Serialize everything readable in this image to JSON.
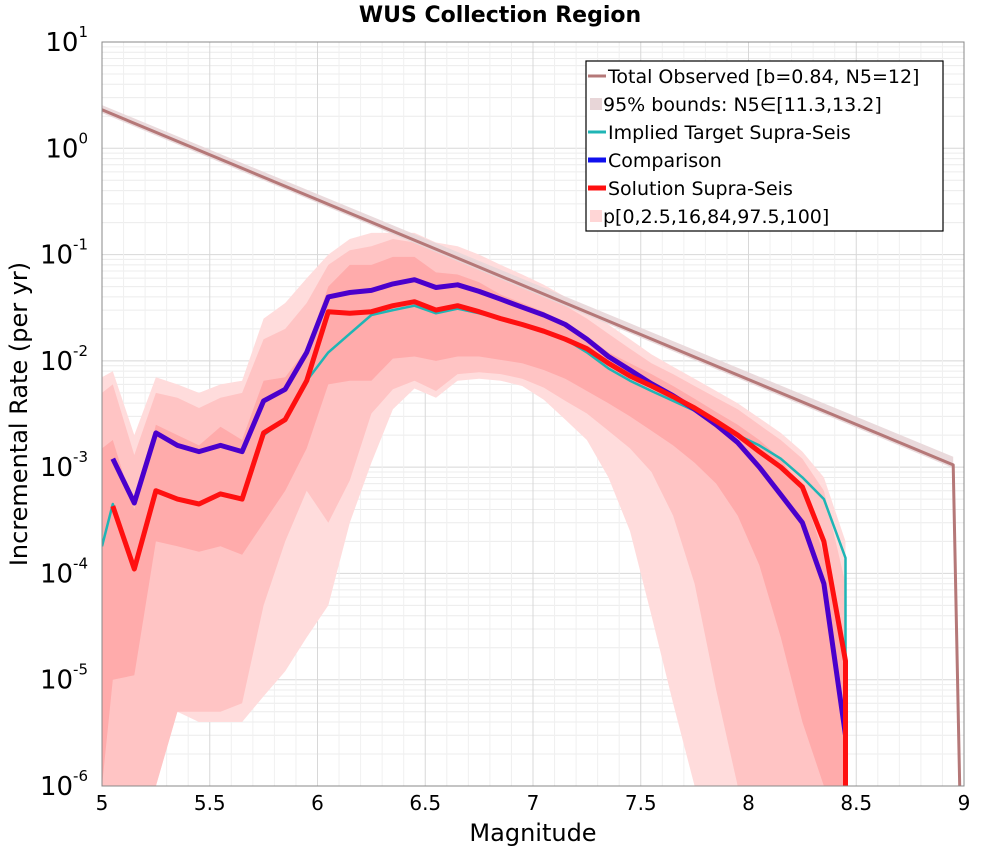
{
  "chart_data": {
    "type": "line",
    "title": "WUS Collection Region",
    "xlabel": "Magnitude",
    "ylabel": "Incremental Rate (per yr)",
    "xlim": [
      5,
      9
    ],
    "ylim": [
      1e-06,
      10
    ],
    "yscale": "log",
    "grid": true,
    "legend_position": "top-right",
    "xticks": [
      {
        "value": 5,
        "label": "5"
      },
      {
        "value": 5.5,
        "label": "5.5"
      },
      {
        "value": 6,
        "label": "6"
      },
      {
        "value": 6.5,
        "label": "6.5"
      },
      {
        "value": 7,
        "label": "7"
      },
      {
        "value": 7.5,
        "label": "7.5"
      },
      {
        "value": 8,
        "label": "8"
      },
      {
        "value": 8.5,
        "label": "8.5"
      },
      {
        "value": 9,
        "label": "9"
      }
    ],
    "yticks": [
      {
        "value": 10,
        "base": "10",
        "exp": "1"
      },
      {
        "value": 1,
        "base": "10",
        "exp": "0"
      },
      {
        "value": 0.1,
        "base": "10",
        "exp": "-1"
      },
      {
        "value": 0.01,
        "base": "10",
        "exp": "-2"
      },
      {
        "value": 0.001,
        "base": "10",
        "exp": "-3"
      },
      {
        "value": 0.0001,
        "base": "10",
        "exp": "-4"
      },
      {
        "value": 1e-05,
        "base": "10",
        "exp": "-5"
      },
      {
        "value": 1e-06,
        "base": "10",
        "exp": "-6"
      }
    ],
    "legend": [
      {
        "label": "Total Observed [b=0.84, N5=12]",
        "color": "#b57878",
        "style": "line"
      },
      {
        "label": "95% bounds: N5∈[11.3,13.2]",
        "color": "#e8d6d8",
        "style": "band"
      },
      {
        "label": "Implied Target Supra-Seis",
        "color": "#1fb5b5",
        "style": "line"
      },
      {
        "label": "Comparison",
        "color": "#1010ee",
        "style": "thickline"
      },
      {
        "label": "Solution Supra-Seis",
        "color": "#ff1010",
        "style": "thickline"
      },
      {
        "label": "p[0,2.5,16,84,97.5,100]",
        "color": "#ffd6d6",
        "style": "band"
      }
    ],
    "colors": {
      "observed_line": "#b57878",
      "observed_band": "#e8d6d8",
      "target": "#1fb5b5",
      "comparison": "#4a00cc",
      "solution": "#ff1010",
      "band_outer": "#ffdcdc",
      "band_mid": "#ffc4c4",
      "band_inner": "#ffabab"
    },
    "series": [
      {
        "name": "Total Observed [b=0.84, N5=12]",
        "x": [
          5.0,
          8.95,
          8.95,
          8.98
        ],
        "y": [
          2.3,
          0.00105,
          0.00105,
          1e-06
        ]
      },
      {
        "name": "95% bounds: N5∈[11.3,13.2]",
        "type": "band",
        "x": [
          5.0,
          8.95
        ],
        "lower": [
          2.15,
          0.00098
        ],
        "upper": [
          2.55,
          0.00125
        ]
      },
      {
        "name": "Implied Target Supra-Seis",
        "x": [
          5.0,
          5.05,
          5.15,
          5.25,
          5.35,
          5.45,
          5.55,
          5.65,
          5.75,
          5.85,
          5.95,
          6.05,
          6.15,
          6.25,
          6.35,
          6.45,
          6.55,
          6.65,
          6.75,
          6.85,
          6.95,
          7.05,
          7.15,
          7.25,
          7.35,
          7.45,
          7.55,
          7.65,
          7.75,
          7.85,
          7.95,
          8.05,
          8.15,
          8.25,
          8.35,
          8.45,
          8.45
        ],
        "y": [
          0.00018,
          0.00045,
          0.00011,
          0.0006,
          0.0005,
          0.00045,
          0.00055,
          0.0005,
          0.002,
          0.0028,
          0.0065,
          0.012,
          0.018,
          0.027,
          0.03,
          0.033,
          0.028,
          0.031,
          0.028,
          0.025,
          0.022,
          0.019,
          0.016,
          0.012,
          0.0085,
          0.0065,
          0.0052,
          0.0042,
          0.0034,
          0.0027,
          0.002,
          0.0016,
          0.0012,
          0.0008,
          0.0005,
          0.00014,
          1e-06
        ]
      },
      {
        "name": "Comparison",
        "x": [
          5.05,
          5.15,
          5.25,
          5.35,
          5.45,
          5.55,
          5.65,
          5.75,
          5.85,
          5.95,
          6.05,
          6.15,
          6.25,
          6.35,
          6.45,
          6.55,
          6.65,
          6.75,
          6.85,
          6.95,
          7.05,
          7.15,
          7.25,
          7.35,
          7.45,
          7.55,
          7.65,
          7.75,
          7.85,
          7.95,
          8.05,
          8.15,
          8.25,
          8.35,
          8.45,
          8.45
        ],
        "y": [
          0.0012,
          0.00046,
          0.0021,
          0.0016,
          0.0014,
          0.0016,
          0.0014,
          0.0042,
          0.0054,
          0.012,
          0.04,
          0.044,
          0.046,
          0.053,
          0.058,
          0.049,
          0.052,
          0.045,
          0.038,
          0.032,
          0.027,
          0.022,
          0.016,
          0.011,
          0.0082,
          0.0061,
          0.0047,
          0.0035,
          0.0025,
          0.0017,
          0.001,
          0.00055,
          0.0003,
          8e-05,
          3e-06,
          1e-06
        ]
      },
      {
        "name": "Solution Supra-Seis",
        "x": [
          5.05,
          5.15,
          5.25,
          5.35,
          5.45,
          5.55,
          5.65,
          5.75,
          5.85,
          5.95,
          6.05,
          6.15,
          6.25,
          6.35,
          6.45,
          6.55,
          6.65,
          6.75,
          6.85,
          6.95,
          7.05,
          7.15,
          7.25,
          7.35,
          7.45,
          7.55,
          7.65,
          7.75,
          7.85,
          7.95,
          8.05,
          8.15,
          8.25,
          8.35,
          8.45,
          8.45
        ],
        "y": [
          0.00043,
          0.00011,
          0.0006,
          0.0005,
          0.00045,
          0.00056,
          0.0005,
          0.0021,
          0.0028,
          0.0065,
          0.029,
          0.028,
          0.029,
          0.033,
          0.036,
          0.03,
          0.033,
          0.029,
          0.025,
          0.022,
          0.019,
          0.016,
          0.013,
          0.0095,
          0.0072,
          0.0058,
          0.0046,
          0.0036,
          0.0027,
          0.002,
          0.0014,
          0.001,
          0.00065,
          0.0002,
          1.5e-05,
          1e-06
        ]
      },
      {
        "name": "p[0,2.5,16,84,97.5,100]",
        "type": "percentile_bands",
        "x": [
          5.0,
          5.05,
          5.15,
          5.25,
          5.35,
          5.45,
          5.55,
          5.65,
          5.75,
          5.85,
          5.95,
          6.05,
          6.15,
          6.25,
          6.35,
          6.45,
          6.55,
          6.65,
          6.75,
          6.85,
          6.95,
          7.05,
          7.15,
          7.25,
          7.35,
          7.45,
          7.55,
          7.65,
          7.75,
          7.85,
          7.95,
          8.05,
          8.15,
          8.25,
          8.35,
          8.45
        ],
        "p0": [
          1e-06,
          1e-06,
          1e-06,
          1e-06,
          5e-06,
          4e-06,
          4e-06,
          4e-06,
          7e-06,
          1.2e-05,
          2.5e-05,
          5e-05,
          0.0003,
          0.0011,
          0.0035,
          0.0055,
          0.0045,
          0.0065,
          0.0068,
          0.0065,
          0.0058,
          0.0043,
          0.0028,
          0.0018,
          0.0008,
          0.00025,
          4e-05,
          6e-06,
          1e-06,
          1e-06,
          1e-06,
          1e-06,
          1e-06,
          1e-06,
          1e-06,
          1e-06
        ],
        "p2_5": [
          1e-06,
          1e-06,
          1e-06,
          1e-06,
          5e-06,
          5e-06,
          5e-06,
          6e-06,
          5e-05,
          0.0002,
          0.0006,
          0.0003,
          0.00075,
          0.0032,
          0.0054,
          0.0065,
          0.0052,
          0.0075,
          0.0078,
          0.0075,
          0.0068,
          0.0056,
          0.0042,
          0.0032,
          0.0022,
          0.0015,
          0.0009,
          0.00035,
          8e-05,
          8e-06,
          1e-06,
          1e-06,
          1e-06,
          1e-06,
          1e-06,
          1e-06
        ],
        "p16": [
          1e-06,
          1e-05,
          1.1e-05,
          0.0002,
          0.00018,
          0.00016,
          0.00018,
          0.00015,
          0.0003,
          0.0006,
          0.0015,
          0.006,
          0.0065,
          0.0065,
          0.0105,
          0.011,
          0.01,
          0.011,
          0.011,
          0.0102,
          0.0095,
          0.0082,
          0.0068,
          0.0052,
          0.004,
          0.003,
          0.0022,
          0.0016,
          0.0011,
          0.0007,
          0.00035,
          0.00012,
          2.5e-05,
          4e-06,
          1e-06,
          1e-06
        ],
        "p84": [
          0.0015,
          0.0018,
          0.0004,
          0.0025,
          0.002,
          0.0016,
          0.0024,
          0.0018,
          0.0065,
          0.007,
          0.013,
          0.05,
          0.08,
          0.08,
          0.095,
          0.095,
          0.068,
          0.065,
          0.055,
          0.042,
          0.035,
          0.029,
          0.021,
          0.017,
          0.012,
          0.0095,
          0.0075,
          0.0058,
          0.0044,
          0.0033,
          0.0025,
          0.0018,
          0.0012,
          0.0006,
          0.00015,
          1.5e-05
        ],
        "p97_5": [
          0.005,
          0.006,
          0.0013,
          0.005,
          0.0045,
          0.0036,
          0.0045,
          0.005,
          0.016,
          0.02,
          0.035,
          0.08,
          0.11,
          0.12,
          0.14,
          0.13,
          0.11,
          0.1,
          0.085,
          0.065,
          0.052,
          0.042,
          0.033,
          0.025,
          0.018,
          0.013,
          0.0095,
          0.0075,
          0.0058,
          0.0045,
          0.0035,
          0.0025,
          0.0018,
          0.0012,
          0.0006,
          8e-05
        ],
        "p100": [
          0.007,
          0.008,
          0.002,
          0.007,
          0.006,
          0.005,
          0.006,
          0.0065,
          0.025,
          0.035,
          0.06,
          0.1,
          0.14,
          0.16,
          0.16,
          0.16,
          0.13,
          0.12,
          0.1,
          0.08,
          0.065,
          0.052,
          0.04,
          0.03,
          0.022,
          0.016,
          0.0115,
          0.0088,
          0.0068,
          0.0052,
          0.004,
          0.0029,
          0.0021,
          0.0014,
          0.0008,
          0.0002
        ]
      }
    ]
  }
}
